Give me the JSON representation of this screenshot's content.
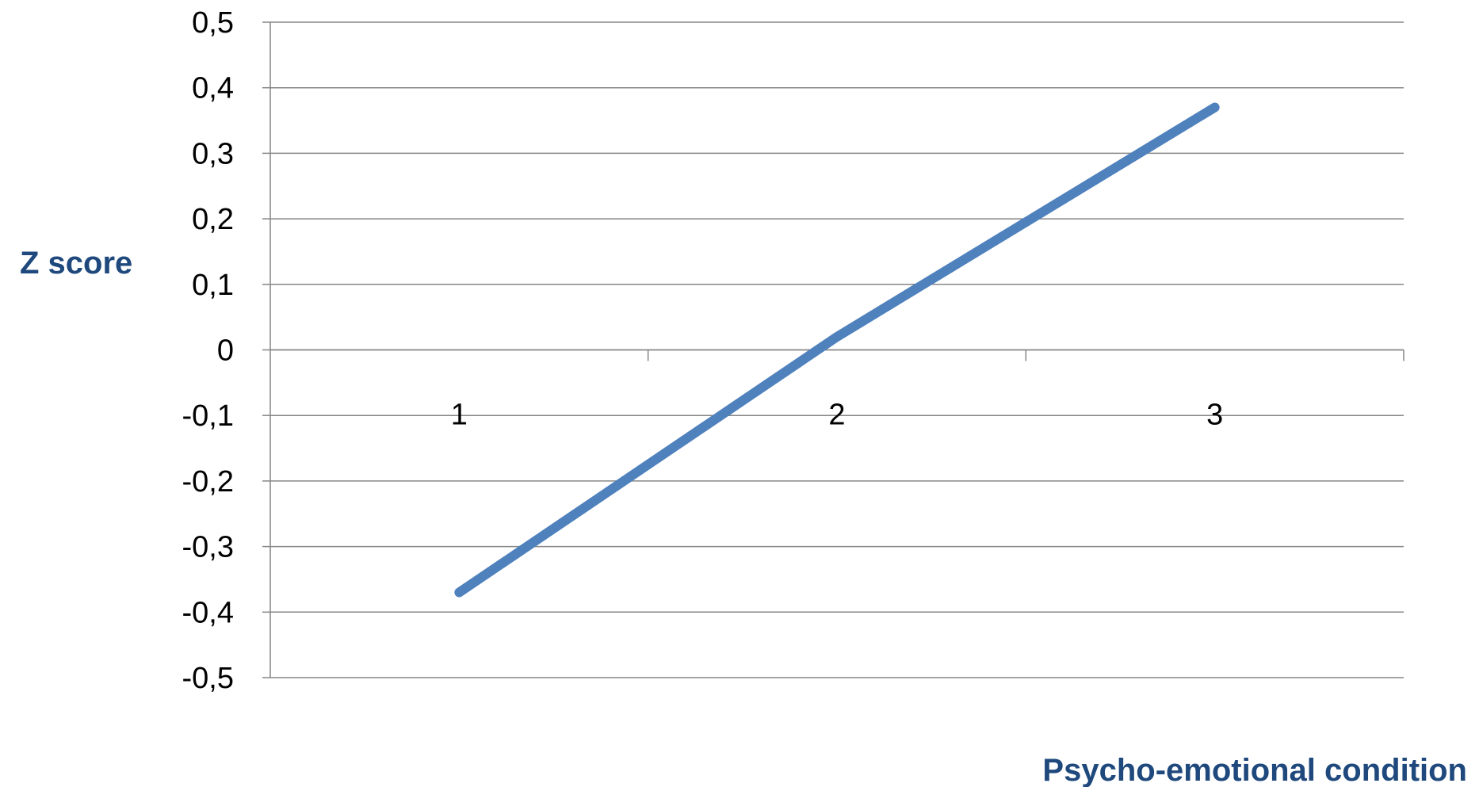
{
  "chart_data": {
    "type": "line",
    "categories": [
      "1",
      "2",
      "3"
    ],
    "series": [
      {
        "values": [
          -0.37,
          0.02,
          0.37
        ],
        "color": "#4F81BD"
      }
    ],
    "y_ticks": [
      "0,5",
      "0,4",
      "0,3",
      "0,2",
      "0,1",
      "0",
      "-0,1",
      "-0,2",
      "-0,3",
      "-0,4",
      "-0,5"
    ],
    "ylim": [
      -0.5,
      0.5
    ],
    "xlabel": "Psycho-emotional condition",
    "ylabel": "Z score",
    "grid": true,
    "label_color": "#1F497D",
    "axis_color": "#868686"
  }
}
